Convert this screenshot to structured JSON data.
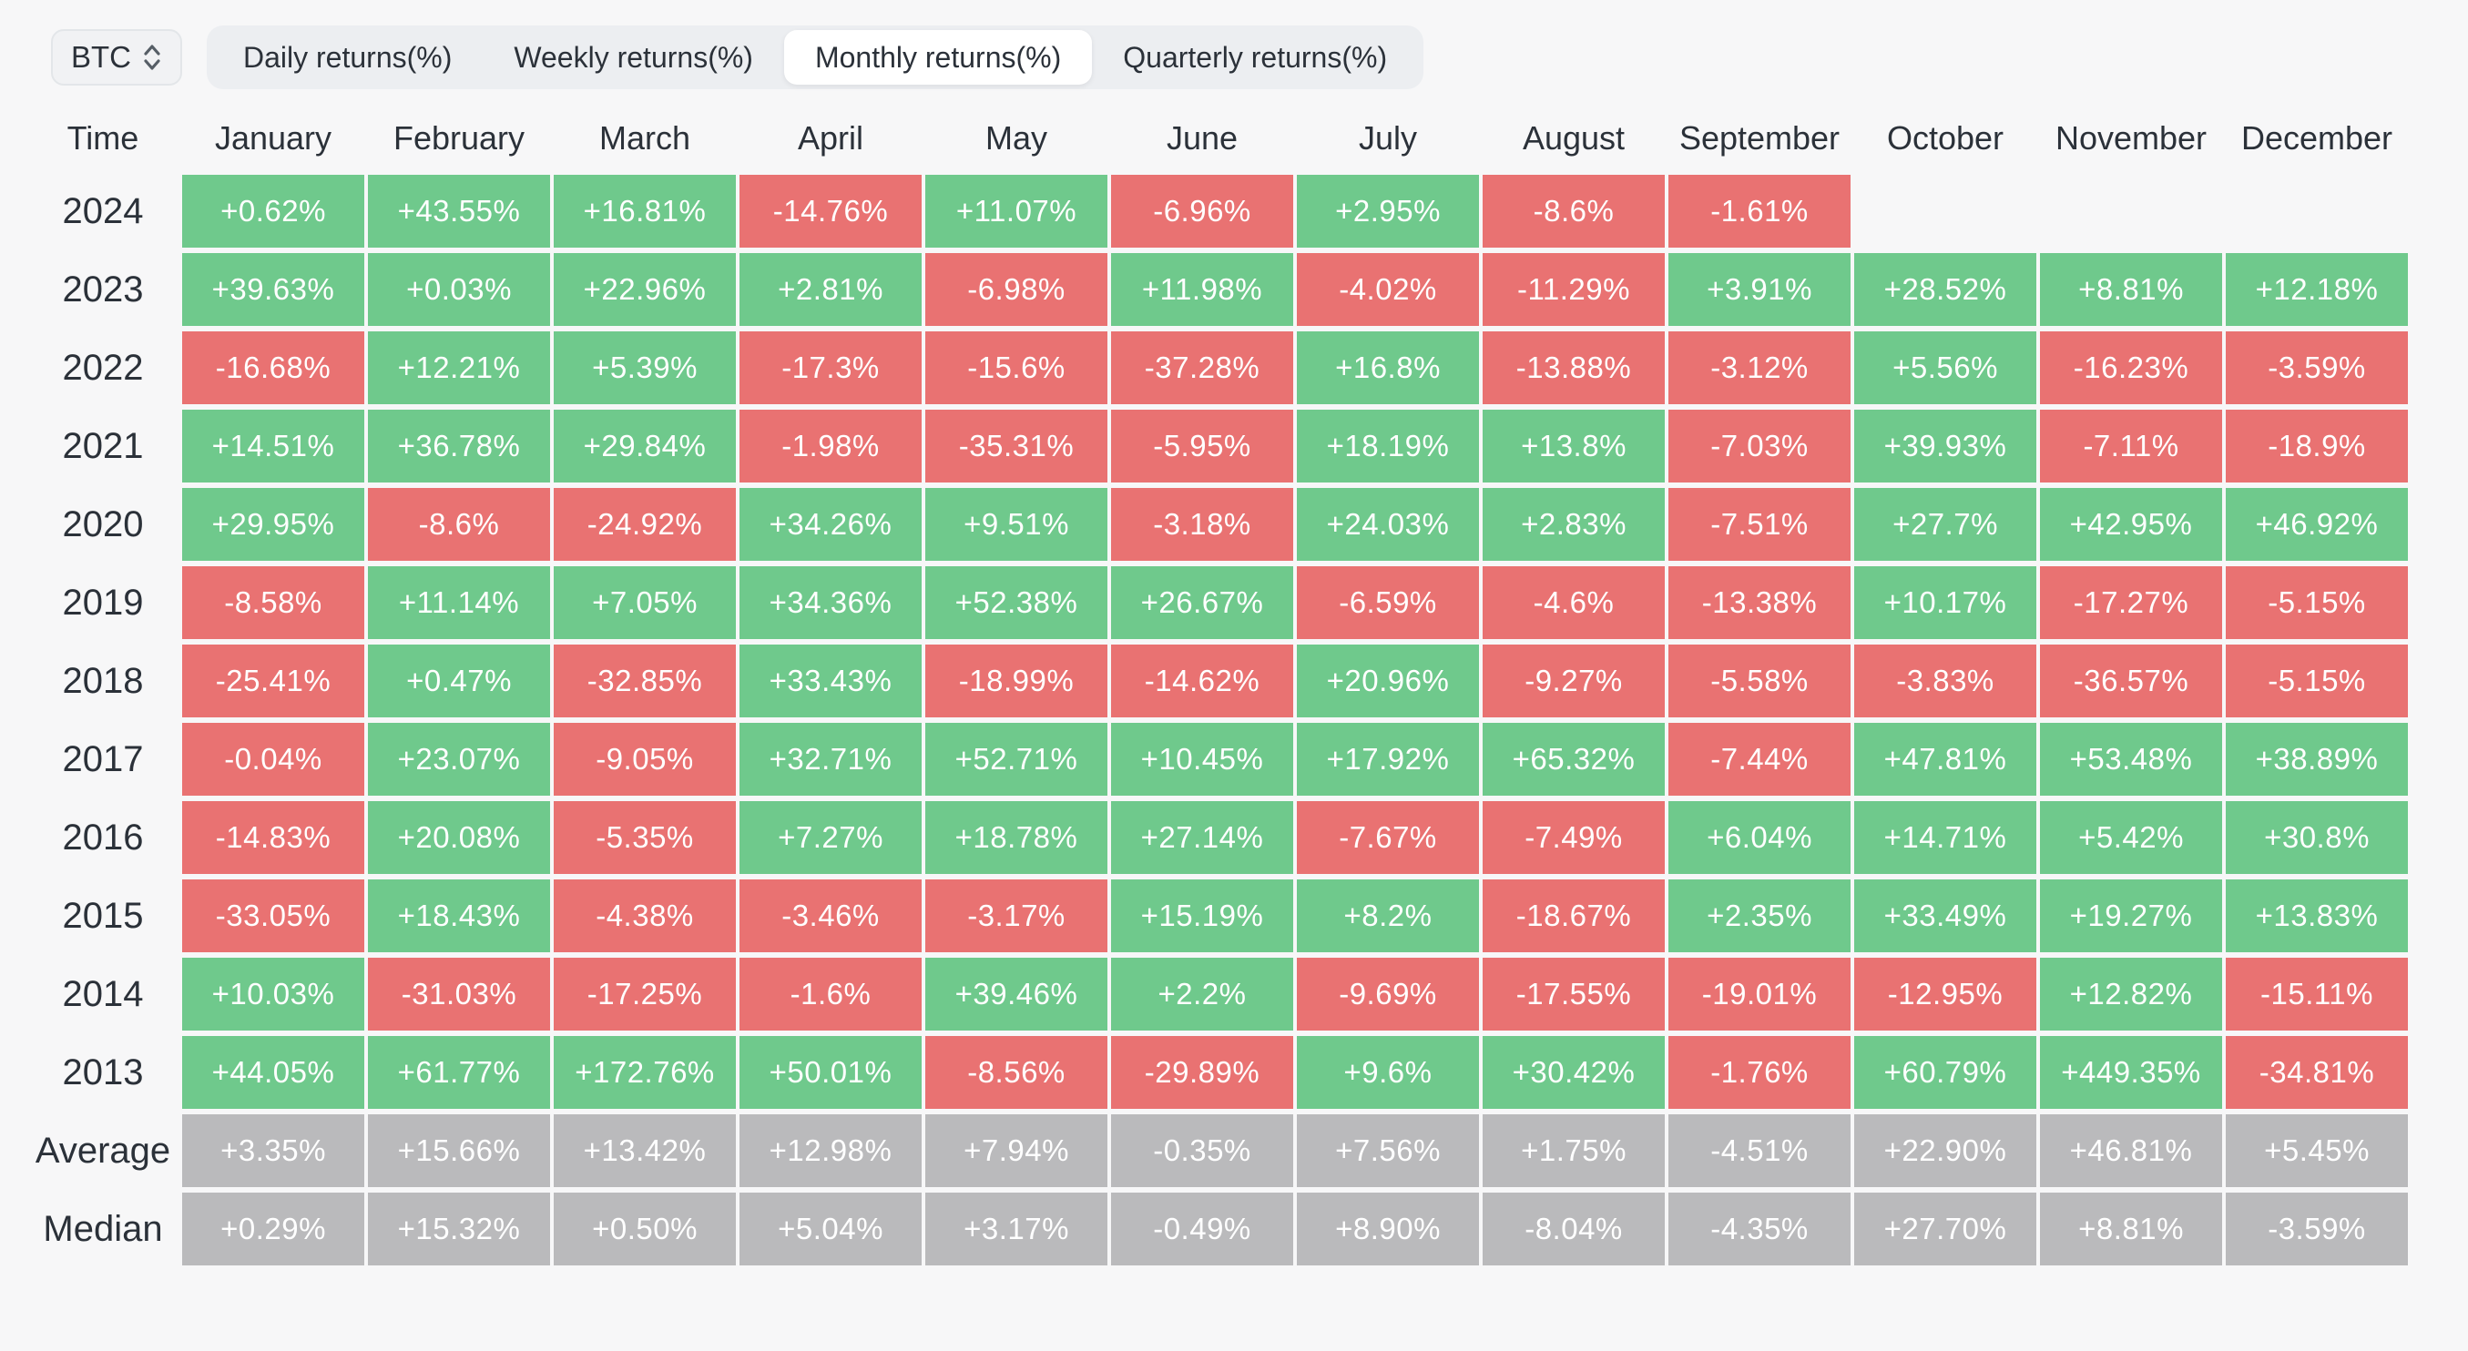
{
  "controls": {
    "symbol_selector": {
      "value": "BTC"
    },
    "tabs": [
      {
        "label": "Daily returns(%)",
        "selected": false
      },
      {
        "label": "Weekly returns(%)",
        "selected": false
      },
      {
        "label": "Monthly returns(%)",
        "selected": true
      },
      {
        "label": "Quarterly returns(%)",
        "selected": false
      }
    ]
  },
  "table": {
    "time_header": "Time",
    "month_headers": [
      "January",
      "February",
      "March",
      "April",
      "May",
      "June",
      "July",
      "August",
      "September",
      "October",
      "November",
      "December"
    ],
    "rows": [
      {
        "label": "2024",
        "type": "year",
        "values": [
          "+0.62%",
          "+43.55%",
          "+16.81%",
          "-14.76%",
          "+11.07%",
          "-6.96%",
          "+2.95%",
          "-8.6%",
          "-1.61%",
          null,
          null,
          null
        ]
      },
      {
        "label": "2023",
        "type": "year",
        "values": [
          "+39.63%",
          "+0.03%",
          "+22.96%",
          "+2.81%",
          "-6.98%",
          "+11.98%",
          "-4.02%",
          "-11.29%",
          "+3.91%",
          "+28.52%",
          "+8.81%",
          "+12.18%"
        ]
      },
      {
        "label": "2022",
        "type": "year",
        "values": [
          "-16.68%",
          "+12.21%",
          "+5.39%",
          "-17.3%",
          "-15.6%",
          "-37.28%",
          "+16.8%",
          "-13.88%",
          "-3.12%",
          "+5.56%",
          "-16.23%",
          "-3.59%"
        ]
      },
      {
        "label": "2021",
        "type": "year",
        "values": [
          "+14.51%",
          "+36.78%",
          "+29.84%",
          "-1.98%",
          "-35.31%",
          "-5.95%",
          "+18.19%",
          "+13.8%",
          "-7.03%",
          "+39.93%",
          "-7.11%",
          "-18.9%"
        ]
      },
      {
        "label": "2020",
        "type": "year",
        "values": [
          "+29.95%",
          "-8.6%",
          "-24.92%",
          "+34.26%",
          "+9.51%",
          "-3.18%",
          "+24.03%",
          "+2.83%",
          "-7.51%",
          "+27.7%",
          "+42.95%",
          "+46.92%"
        ]
      },
      {
        "label": "2019",
        "type": "year",
        "values": [
          "-8.58%",
          "+11.14%",
          "+7.05%",
          "+34.36%",
          "+52.38%",
          "+26.67%",
          "-6.59%",
          "-4.6%",
          "-13.38%",
          "+10.17%",
          "-17.27%",
          "-5.15%"
        ]
      },
      {
        "label": "2018",
        "type": "year",
        "values": [
          "-25.41%",
          "+0.47%",
          "-32.85%",
          "+33.43%",
          "-18.99%",
          "-14.62%",
          "+20.96%",
          "-9.27%",
          "-5.58%",
          "-3.83%",
          "-36.57%",
          "-5.15%"
        ]
      },
      {
        "label": "2017",
        "type": "year",
        "values": [
          "-0.04%",
          "+23.07%",
          "-9.05%",
          "+32.71%",
          "+52.71%",
          "+10.45%",
          "+17.92%",
          "+65.32%",
          "-7.44%",
          "+47.81%",
          "+53.48%",
          "+38.89%"
        ]
      },
      {
        "label": "2016",
        "type": "year",
        "values": [
          "-14.83%",
          "+20.08%",
          "-5.35%",
          "+7.27%",
          "+18.78%",
          "+27.14%",
          "-7.67%",
          "-7.49%",
          "+6.04%",
          "+14.71%",
          "+5.42%",
          "+30.8%"
        ]
      },
      {
        "label": "2015",
        "type": "year",
        "values": [
          "-33.05%",
          "+18.43%",
          "-4.38%",
          "-3.46%",
          "-3.17%",
          "+15.19%",
          "+8.2%",
          "-18.67%",
          "+2.35%",
          "+33.49%",
          "+19.27%",
          "+13.83%"
        ]
      },
      {
        "label": "2014",
        "type": "year",
        "values": [
          "+10.03%",
          "-31.03%",
          "-17.25%",
          "-1.6%",
          "+39.46%",
          "+2.2%",
          "-9.69%",
          "-17.55%",
          "-19.01%",
          "-12.95%",
          "+12.82%",
          "-15.11%"
        ]
      },
      {
        "label": "2013",
        "type": "year",
        "values": [
          "+44.05%",
          "+61.77%",
          "+172.76%",
          "+50.01%",
          "-8.56%",
          "-29.89%",
          "+9.6%",
          "+30.42%",
          "-1.76%",
          "+60.79%",
          "+449.35%",
          "-34.81%"
        ]
      },
      {
        "label": "Average",
        "type": "summary",
        "values": [
          "+3.35%",
          "+15.66%",
          "+13.42%",
          "+12.98%",
          "+7.94%",
          "-0.35%",
          "+7.56%",
          "+1.75%",
          "-4.51%",
          "+22.90%",
          "+46.81%",
          "+5.45%"
        ]
      },
      {
        "label": "Median",
        "type": "summary",
        "values": [
          "+0.29%",
          "+15.32%",
          "+0.50%",
          "+5.04%",
          "+3.17%",
          "-0.49%",
          "+8.90%",
          "-8.04%",
          "-4.35%",
          "+27.70%",
          "+8.81%",
          "-3.59%"
        ]
      }
    ]
  },
  "colors": {
    "positive_cell": "#6fc98c",
    "negative_cell": "#e97272",
    "summary_cell": "#bababc",
    "page_background": "#f7f7f8",
    "tabs_background": "#eceef1",
    "selected_tab_background": "#ffffff",
    "header_text": "#2b3139",
    "cell_text": "#ffffff"
  }
}
